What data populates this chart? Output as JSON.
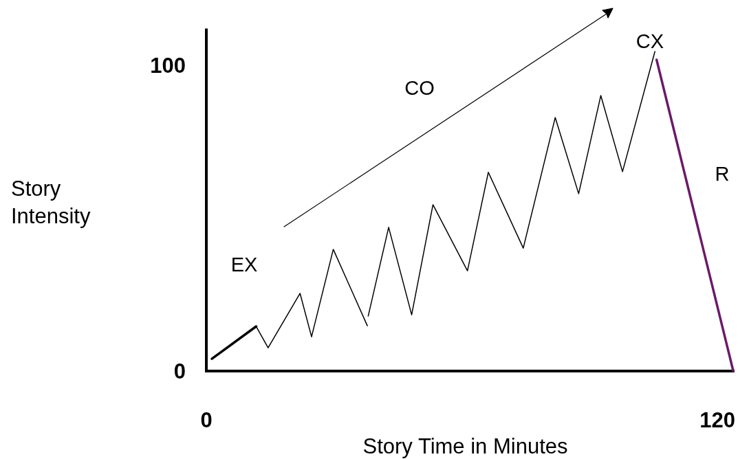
{
  "chart_data": {
    "type": "line",
    "xlabel": "Story Time in Minutes",
    "ylabel": "Story Intensity",
    "xlim": [
      0,
      124
    ],
    "xticks": [
      0,
      120
    ],
    "ylim": [
      0,
      112
    ],
    "yticks": [
      0,
      100
    ],
    "grid": false,
    "marker": "none",
    "line_style": "solid",
    "series": [
      {
        "color": "#000000",
        "x": [
          1.3,
          11.7
        ],
        "values": [
          4,
          14.6
        ]
      },
      {
        "color": "#000000",
        "x": [
          11.7,
          14.5,
          22,
          24.7,
          29.8,
          37.8,
          37.9,
          38,
          42.8,
          48.2,
          53.2,
          61.3,
          66.2,
          74.4,
          81.9,
          87.4,
          92.6,
          97.7,
          105.3
        ],
        "values": [
          14.6,
          7.6,
          25.4,
          11.2,
          39.8,
          14.8,
          null,
          18,
          47,
          18.4,
          54.4,
          32.8,
          65,
          40.2,
          82.9,
          58,
          90.1,
          65.2,
          104.5
        ]
      },
      {
        "color": "#6a1a6a",
        "x": [
          105.7,
          123.7
        ],
        "values": [
          101.8,
          0
        ]
      }
    ],
    "annotations": [
      "EX",
      "CO",
      "CX",
      "R"
    ]
  }
}
